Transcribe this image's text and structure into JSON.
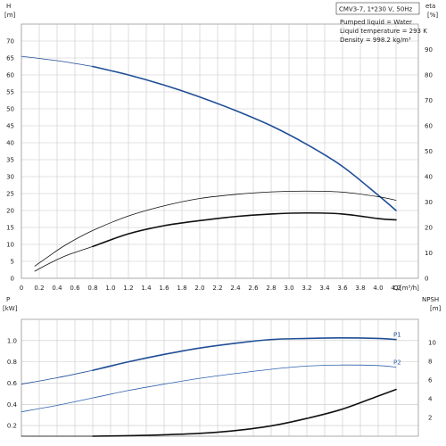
{
  "header": {
    "pump_model": "CMV3-7, 1*230 V, 50Hz",
    "liquid": "Pumped liquid = Water",
    "temperature": "Liquid temperature = 293 K",
    "density": "Density = 998.2 kg/m³"
  },
  "colors": {
    "blue": "#1f4e96",
    "black": "#111111",
    "lightblue": "#2f62ad",
    "grid": "#c8c8c8"
  },
  "chart_data": [
    {
      "type": "line",
      "panel": "top",
      "axes": {
        "left_label": "H",
        "left_unit": "[m]",
        "right_label": "eta",
        "right_unit": "[%]",
        "x_label": "Q",
        "x_unit": "[m³/h]",
        "xlim": [
          0,
          4.45
        ],
        "ylim_left": [
          0,
          75
        ],
        "ylim_right": [
          0,
          100
        ],
        "x_ticks": [
          "0",
          "0.2",
          "0.4",
          "0.6",
          "0.8",
          "1.0",
          "1.2",
          "1.4",
          "1.6",
          "1.8",
          "2.0",
          "2.2",
          "2.4",
          "2.6",
          "2.8",
          "3.0",
          "3.2",
          "3.4",
          "3.6",
          "3.8",
          "4.0",
          "4.2"
        ],
        "left_ticks": [
          "0",
          "5",
          "10",
          "15",
          "20",
          "25",
          "30",
          "35",
          "40",
          "45",
          "50",
          "55",
          "60",
          "65",
          "70"
        ],
        "right_ticks": [
          "0",
          "10",
          "20",
          "30",
          "40",
          "50",
          "60",
          "70",
          "80",
          "90"
        ]
      },
      "grid": true,
      "series": [
        {
          "role": "H",
          "axis": "left",
          "color": "blue",
          "width": 1.6,
          "x": [
            0.8,
            1.2,
            1.6,
            2.0,
            2.4,
            2.8,
            3.2,
            3.6,
            4.0,
            4.2
          ],
          "y": [
            62.5,
            60.0,
            57.0,
            53.5,
            49.5,
            45.0,
            39.5,
            33.0,
            24.5,
            20.0
          ]
        },
        {
          "role": "H_extension",
          "axis": "left",
          "color": "blue",
          "width": 0.8,
          "x": [
            0,
            0.4,
            0.8
          ],
          "y": [
            65.5,
            64.2,
            62.5
          ]
        },
        {
          "role": "eta",
          "axis": "right",
          "color": "black",
          "width": 1.6,
          "x": [
            0.8,
            1.2,
            1.6,
            2.0,
            2.4,
            2.8,
            3.2,
            3.6,
            4.0,
            4.2
          ],
          "y": [
            12.5,
            17.5,
            20.7,
            22.7,
            24.3,
            25.3,
            25.7,
            25.3,
            23.5,
            23.0
          ]
        },
        {
          "role": "eta_extension",
          "axis": "right",
          "color": "black",
          "width": 0.8,
          "x": [
            0.15,
            0.3,
            0.5,
            0.8
          ],
          "y": [
            2.8,
            5.6,
            8.9,
            12.5
          ]
        },
        {
          "role": "eta_upper",
          "axis": "right",
          "color": "black",
          "width": 0.8,
          "x": [
            0.15,
            0.3,
            0.5,
            0.8,
            1.2,
            1.6,
            2.0,
            2.4,
            2.8,
            3.2,
            3.6,
            4.0,
            4.2
          ],
          "y": [
            4.8,
            8.5,
            13.2,
            18.8,
            24.5,
            28.5,
            31.4,
            33.0,
            34.0,
            34.3,
            33.9,
            32.1,
            30.7
          ]
        }
      ]
    },
    {
      "type": "line",
      "panel": "bottom",
      "axes": {
        "left_label": "P",
        "left_unit": "[kW]",
        "right_label": "NPSH",
        "right_unit": "[m]",
        "xlim": [
          0,
          4.45
        ],
        "ylim_left": [
          0.1,
          1.2
        ],
        "ylim_right": [
          0,
          12.5
        ],
        "left_ticks": [
          "0.2",
          "0.4",
          "0.6",
          "0.8",
          "1.0"
        ],
        "right_ticks": [
          "2",
          "4",
          "6",
          "8",
          "10"
        ]
      },
      "grid": true,
      "series": [
        {
          "name": "P1",
          "axis": "left",
          "color": "blue",
          "width": 1.6,
          "x": [
            0.8,
            1.2,
            1.6,
            2.0,
            2.4,
            2.8,
            3.2,
            3.6,
            4.0,
            4.2
          ],
          "y": [
            0.72,
            0.8,
            0.87,
            0.93,
            0.975,
            1.01,
            1.02,
            1.025,
            1.02,
            1.01
          ]
        },
        {
          "role": "P1_extension",
          "axis": "left",
          "color": "blue",
          "width": 0.8,
          "x": [
            0,
            0.4,
            0.8
          ],
          "y": [
            0.59,
            0.65,
            0.72
          ]
        },
        {
          "name": "P2",
          "axis": "left",
          "color": "lightblue",
          "width": 0.8,
          "x": [
            0,
            0.4,
            0.8,
            1.2,
            1.6,
            2.0,
            2.4,
            2.8,
            3.2,
            3.6,
            4.0,
            4.2
          ],
          "y": [
            0.33,
            0.39,
            0.46,
            0.53,
            0.59,
            0.645,
            0.69,
            0.73,
            0.76,
            0.77,
            0.765,
            0.75
          ]
        },
        {
          "role": "NPSH",
          "axis": "right",
          "color": "black",
          "width": 1.6,
          "x": [
            0.8,
            1.2,
            1.6,
            2.0,
            2.4,
            2.8,
            3.2,
            3.6,
            4.0,
            4.2
          ],
          "y": [
            0.0,
            0.05,
            0.15,
            0.3,
            0.6,
            1.1,
            1.9,
            2.9,
            4.3,
            5.0
          ]
        },
        {
          "role": "NPSH_extension",
          "axis": "right",
          "color": "black",
          "width": 0.8,
          "x": [
            0,
            0.8
          ],
          "y": [
            0.0,
            0.0
          ]
        }
      ]
    }
  ]
}
